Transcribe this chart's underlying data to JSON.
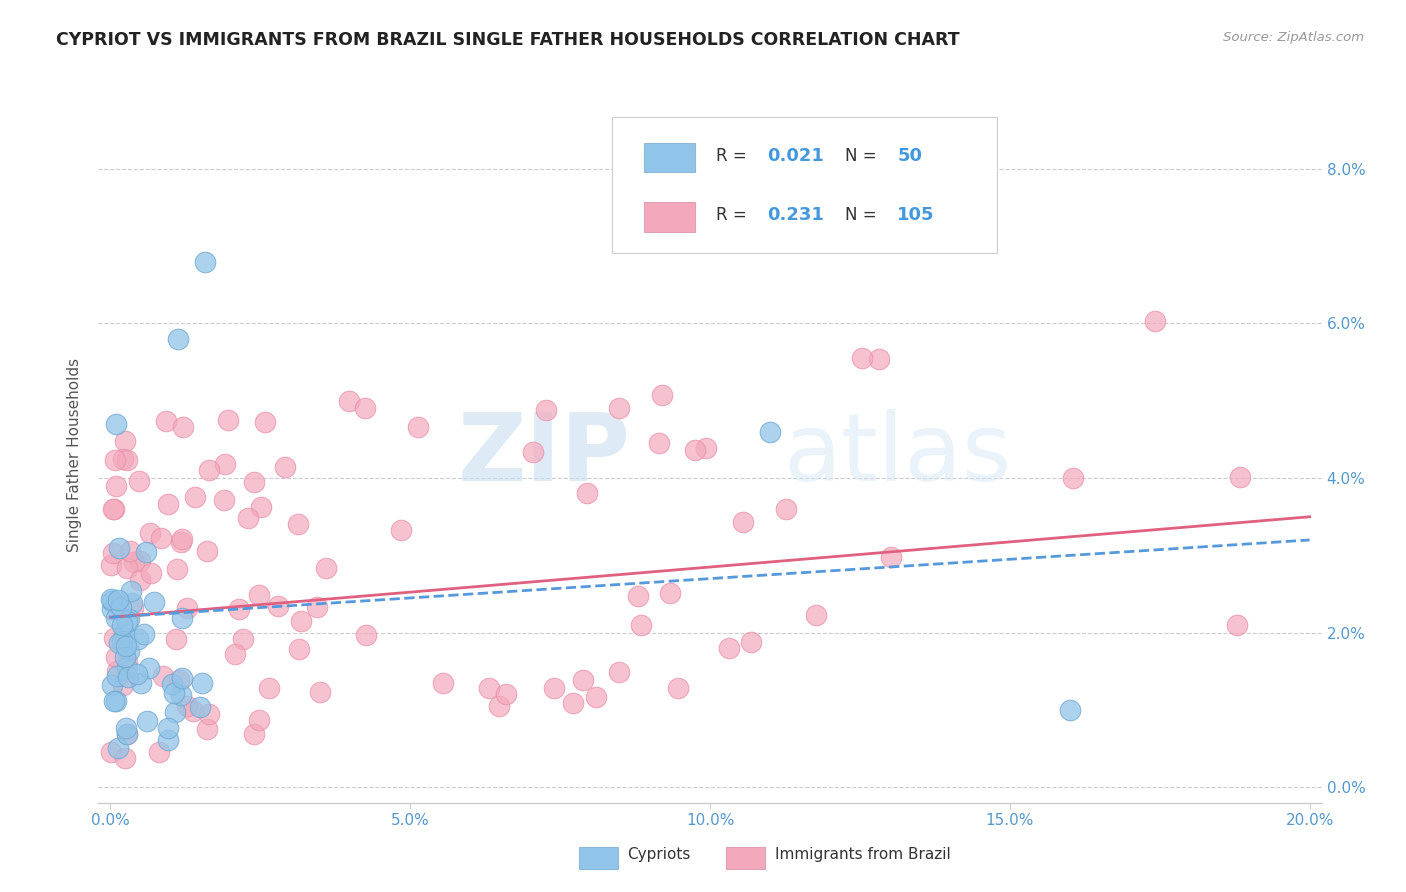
{
  "title": "CYPRIOT VS IMMIGRANTS FROM BRAZIL SINGLE FATHER HOUSEHOLDS CORRELATION CHART",
  "source": "Source: ZipAtlas.com",
  "ylabel_label": "Single Father Households",
  "watermark_zip": "ZIP",
  "watermark_atlas": "atlas",
  "legend_cypriot_R": "0.021",
  "legend_cypriot_N": "50",
  "legend_brazil_R": "0.231",
  "legend_brazil_N": "105",
  "cypriot_color": "#90c4e8",
  "brazil_color": "#f4a8bc",
  "cypriot_line_color": "#5599dd",
  "brazil_line_color": "#e06080",
  "text_blue": "#4499dd",
  "text_dark": "#333333",
  "grid_color": "#cccccc",
  "tick_color": "#5599cc",
  "title_color": "#222222",
  "source_color": "#999999",
  "ylabel_color": "#555555"
}
